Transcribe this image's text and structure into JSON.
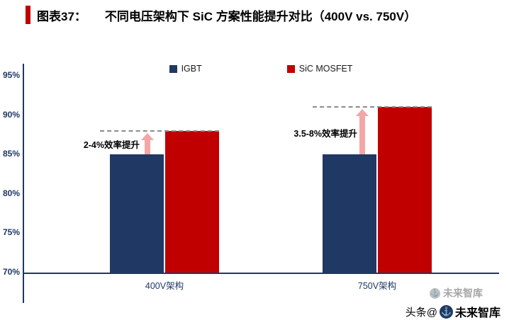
{
  "header": {
    "tag": "图表37：",
    "title": "不同电压架构下 SiC 方案性能提升对比（400V vs. 750V）",
    "accent_color": "#C00000"
  },
  "chart_data": {
    "type": "bar",
    "title": "不同电压架构下 SiC 方案性能提升对比（400V vs. 750V）",
    "categories": [
      "400V架构",
      "750V架构"
    ],
    "series": [
      {
        "name": "IGBT",
        "color": "#1F3864",
        "values": [
          85,
          85
        ]
      },
      {
        "name": "SiC MOSFET",
        "color": "#C00000",
        "values": [
          88,
          91
        ]
      }
    ],
    "ylim": [
      70,
      95
    ],
    "yticks": [
      {
        "label": "95%",
        "value": 95
      },
      {
        "label": "90%",
        "value": 90
      },
      {
        "label": "85%",
        "value": 85
      },
      {
        "label": "80%",
        "value": 80
      },
      {
        "label": "75%",
        "value": 75
      },
      {
        "label": "70%",
        "value": 70
      }
    ],
    "grid": false,
    "legend_position": "top",
    "annotations": [
      {
        "text": "2-4%效率提升",
        "group": 0,
        "target_value": 88,
        "from_value": 85
      },
      {
        "text": "3.5-8%效率提升",
        "group": 1,
        "target_value": 91,
        "from_value": 85
      }
    ],
    "colors": {
      "axis": "#1F3864",
      "dashed_line": "#8C8C8C",
      "arrow": "#F4A6A6"
    }
  },
  "watermark": {
    "inline": "未来智库",
    "footer_prefix": "头条@",
    "footer_name": "未来智库"
  }
}
